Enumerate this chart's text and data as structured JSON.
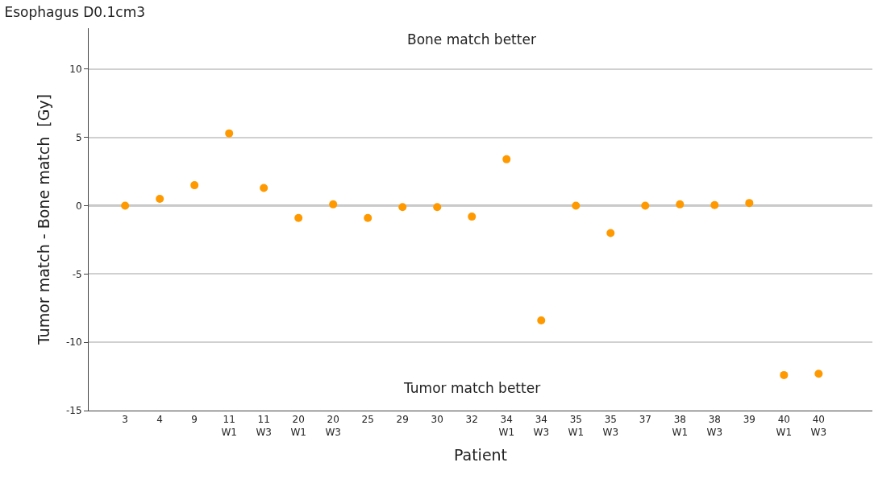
{
  "chart_data": {
    "type": "scatter",
    "title": "Esophagus D0.1cm3",
    "xlabel": "Patient",
    "ylabel": "Tumor match - Bone match  [Gy]",
    "categories": [
      "3",
      "4",
      "9",
      "11\nW1",
      "11\nW3",
      "20\nW1",
      "20\nW3",
      "25",
      "29",
      "30",
      "32",
      "34\nW1",
      "34\nW3",
      "35\nW1",
      "35\nW3",
      "37",
      "38\nW1",
      "38\nW3",
      "39",
      "40\nW1",
      "40\nW3"
    ],
    "series": [
      {
        "color": "#ff9900",
        "values": [
          0.0,
          0.5,
          1.5,
          5.3,
          1.3,
          -0.9,
          0.1,
          -0.9,
          -0.1,
          -0.1,
          -0.8,
          3.4,
          -8.4,
          0.0,
          -2.0,
          0.0,
          0.1,
          0.05,
          0.2,
          -12.4,
          -12.3
        ]
      }
    ],
    "ylim": [
      -15,
      13
    ],
    "yticks": [
      -15,
      -10,
      -5,
      0,
      5,
      10
    ],
    "grid": "y",
    "marker": "circle",
    "ref_lines": [
      {
        "axis": "y",
        "value": 0,
        "color": "#a0a0a0"
      }
    ],
    "annotations": [
      "Bone match better",
      "Tumor match better"
    ]
  }
}
